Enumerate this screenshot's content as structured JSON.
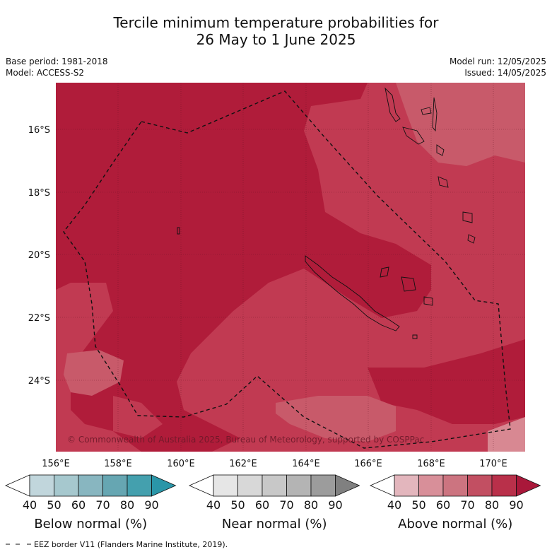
{
  "title_line1": "Tercile minimum temperature probabilities for",
  "title_line2": "26 May to 1 June 2025",
  "base_period": "Base period: 1981-2018",
  "model": "Model: ACCESS-S2",
  "model_run": "Model run: 12/05/2025",
  "issued": "Issued: 14/05/2025",
  "copyright": "© Commonwealth of Australia 2025, Bureau of Meteorology, supported by COSPPac",
  "lon_labels": [
    "156°E",
    "158°E",
    "160°E",
    "162°E",
    "164°E",
    "166°E",
    "168°E",
    "170°E"
  ],
  "lat_labels": [
    "16°S",
    "18°S",
    "20°S",
    "22°S",
    "24°S"
  ],
  "colorbars": [
    {
      "title": "Below normal (%)",
      "ticks": [
        "40",
        "50",
        "60",
        "70",
        "80",
        "90"
      ],
      "colors": [
        "#ffffff",
        "#c1d6dc",
        "#a6c8ce",
        "#88b6c0",
        "#66a6b2",
        "#44a0ae",
        "#2a96a8"
      ]
    },
    {
      "title": "Near normal (%)",
      "ticks": [
        "40",
        "50",
        "60",
        "70",
        "80",
        "90"
      ],
      "colors": [
        "#ffffff",
        "#e6e6e6",
        "#d8d8d8",
        "#c8c8c8",
        "#b4b4b4",
        "#9c9c9c",
        "#808080"
      ]
    },
    {
      "title": "Above normal (%)",
      "ticks": [
        "40",
        "50",
        "60",
        "70",
        "80",
        "90"
      ],
      "colors": [
        "#ffffff",
        "#e3b6bd",
        "#d88f99",
        "#cc7480",
        "#c24f62",
        "#b9304a",
        "#a9183a"
      ]
    }
  ],
  "legend_note": "EEZ border V11 (Flanders Marine Institute, 2019).",
  "colors": {
    "above80": "#b01c3a",
    "above70": "#c13a52",
    "above60": "#c85a6a",
    "above50": "#d88892"
  }
}
